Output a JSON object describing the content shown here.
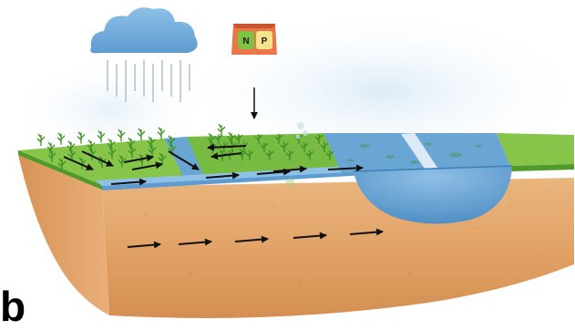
{
  "panel_label": "b",
  "fertilizer_bag": {
    "left_letter": "N",
    "right_letter": "P"
  },
  "colors": {
    "cloud": "#6fa9d8",
    "rain": "#b8c2cc",
    "grass": "#7fc142",
    "grass_dark": "#4e9a2a",
    "water": "#6aa6d4",
    "water_light": "#a9cce9",
    "soil": "#e3a66e",
    "soil_dark": "#c98a4f",
    "arrow": "#111111"
  },
  "icons": [
    "rain-cloud-icon",
    "fertilizer-bag-icon",
    "crop-plant-icon",
    "flow-arrow-icon"
  ]
}
